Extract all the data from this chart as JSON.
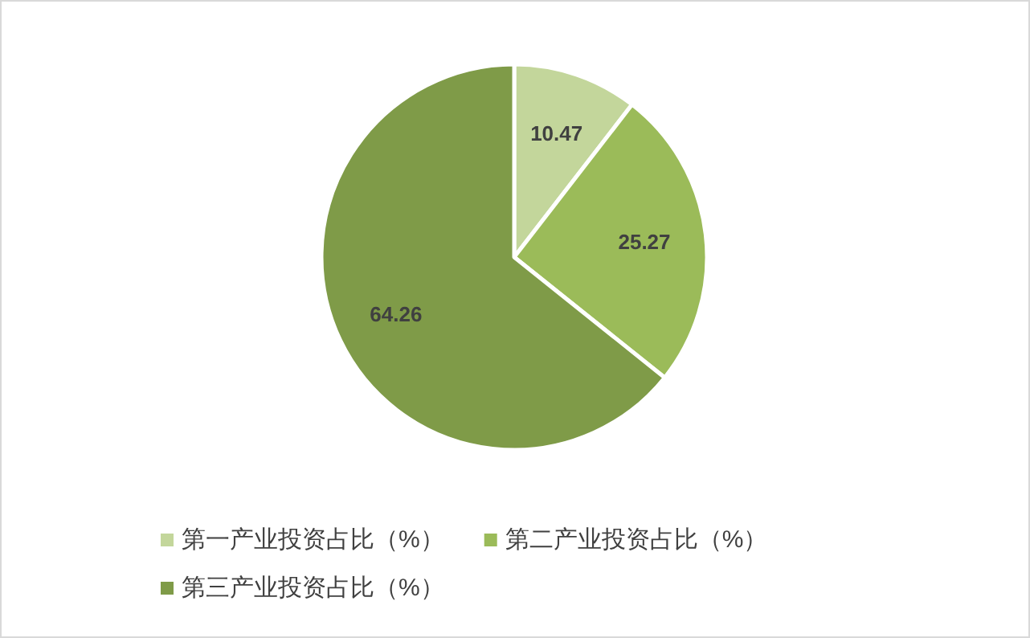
{
  "chart_data": {
    "type": "pie",
    "categories": [
      "第一产业投资占比（%）",
      "第二产业投资占比（%）",
      "第三产业投资占比（%）"
    ],
    "values": [
      10.47,
      25.27,
      64.26
    ],
    "colors": [
      "#c3d69b",
      "#9bbb59",
      "#7f9b48"
    ],
    "data_labels": true,
    "legend": "bottom"
  }
}
